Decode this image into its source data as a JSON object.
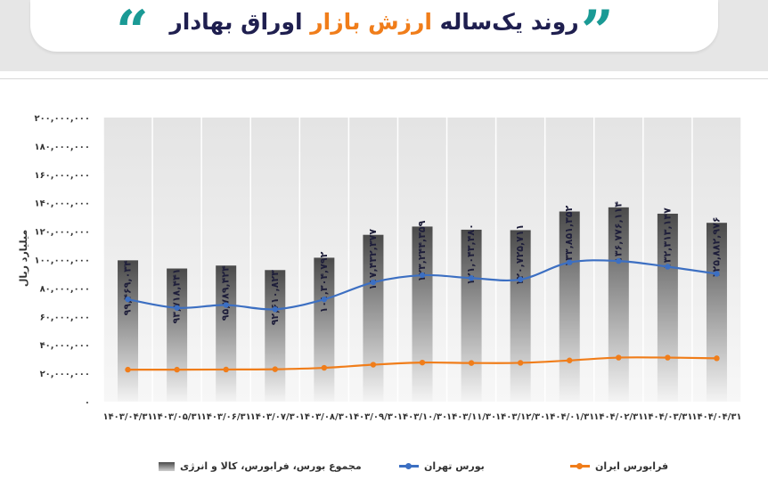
{
  "header": {
    "title_prefix": "روند یک‌ساله ",
    "title_highlight": "ارزش بازار",
    "title_suffix": " اوراق بهادار",
    "accent_color": "#f07d1a",
    "quote_color": "#1a9a95",
    "quote_left": "“",
    "quote_right": "”"
  },
  "chart_data": {
    "type": "bar",
    "ylabel": "میلیارد ریال",
    "ylim": [
      0,
      200000000
    ],
    "yticks": [
      "۰",
      "۲۰,۰۰۰,۰۰۰",
      "۴۰,۰۰۰,۰۰۰",
      "۶۰,۰۰۰,۰۰۰",
      "۸۰,۰۰۰,۰۰۰",
      "۱۰۰,۰۰۰,۰۰۰",
      "۱۲۰,۰۰۰,۰۰۰",
      "۱۴۰,۰۰۰,۰۰۰",
      "۱۶۰,۰۰۰,۰۰۰",
      "۱۸۰,۰۰۰,۰۰۰",
      "۲۰۰,۰۰۰,۰۰۰"
    ],
    "ytick_values": [
      0,
      20000000,
      40000000,
      60000000,
      80000000,
      100000000,
      120000000,
      140000000,
      160000000,
      180000000,
      200000000
    ],
    "categories": [
      "۱۴۰۳/۰۴/۳۱",
      "۱۴۰۳/۰۵/۳۱",
      "۱۴۰۳/۰۶/۳۱",
      "۱۴۰۳/۰۷/۳۰",
      "۱۴۰۳/۰۸/۳۰",
      "۱۴۰۳/۰۹/۳۰",
      "۱۴۰۳/۱۰/۳۰",
      "۱۴۰۳/۱۱/۳۰",
      "۱۴۰۳/۱۲/۳۰",
      "۱۴۰۴/۰۱/۳۱",
      "۱۴۰۴/۰۲/۳۱",
      "۱۴۰۴/۰۳/۳۱",
      "۱۴۰۴/۰۴/۳۱"
    ],
    "grid": true,
    "series": [
      {
        "name": "مجموع بورس، فرابورس، کالا و انرژی",
        "kind": "bar",
        "color": "#6e6e6e",
        "values": [
          99469034,
          93718441,
          95789424,
          92610823,
          101304792,
          117432377,
          123244359,
          121043480,
          120725711,
          133851352,
          136776114,
          132313147,
          125882976
        ],
        "labels": [
          "۹۹,۴۶۹,۰۳۴",
          "۹۳,۷۱۸,۴۴۱",
          "۹۵,۷۸۹,۴۲۴",
          "۹۲,۶۱۰,۸۲۳",
          "۱۰۱,۳۰۴,۷۹۲",
          "۱۱۷,۴۳۲,۳۷۷",
          "۱۲۳,۲۴۴,۳۵۹",
          "۱۲۱,۰۴۳,۴۸۰",
          "۱۲۰,۷۲۵,۷۱۱",
          "۱۳۳,۸۵۱,۳۵۲",
          "۱۳۶,۷۷۶,۱۱۴",
          "۱۳۲,۳۱۳,۱۴۷",
          "۱۲۵,۸۸۲,۹۷۶"
        ]
      },
      {
        "name": "بورس تهران",
        "kind": "line",
        "color": "#3c6fc2",
        "values": [
          72000000,
          66000000,
          68000000,
          65000000,
          72000000,
          84000000,
          89000000,
          87000000,
          86000000,
          98000000,
          99000000,
          95000000,
          90000000
        ]
      },
      {
        "name": "فرابورس ایران",
        "kind": "line",
        "color": "#f07d1a",
        "values": [
          22500000,
          22500000,
          22600000,
          22800000,
          23800000,
          26000000,
          27500000,
          27200000,
          27300000,
          29000000,
          31000000,
          31000000,
          30500000
        ]
      }
    ],
    "legend_position": "bottom"
  }
}
